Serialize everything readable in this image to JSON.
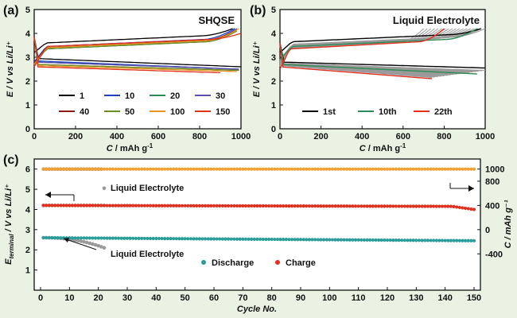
{
  "chart_data": [
    {
      "panel": "(a)",
      "type": "line",
      "title": "SHQSE",
      "xlabel_main": "C",
      "xlabel_unit": " / mAh g",
      "xlabel_sup": "-1",
      "ylabel": "E / V vs Li/Li⁺",
      "xlim": [
        0,
        1000
      ],
      "ylim": [
        0,
        5
      ],
      "xticks": [
        "0",
        "200",
        "400",
        "600",
        "800",
        "1000"
      ],
      "yticks": [
        "0",
        "1",
        "2",
        "3",
        "4",
        "5"
      ],
      "legend": [
        "1",
        "10",
        "20",
        "30",
        "40",
        "50",
        "100",
        "150"
      ],
      "colors": {
        "1": "#000000",
        "10": "#1f3fbf",
        "20": "#2e8b57",
        "30": "#5b4cae",
        "40": "#8b1a1a",
        "50": "#6b8e23",
        "100": "#e8931c",
        "150": "#e0301e"
      },
      "series": [
        {
          "name": "1",
          "charge_capacity": 960,
          "charge_start": 3.2,
          "charge_end": 4.2,
          "plateau": 3.75,
          "discharge_capacity": 1000,
          "discharge_start": 2.95,
          "discharge_end": 2.6
        },
        {
          "name": "10",
          "charge_capacity": 970,
          "charge_start": 2.8,
          "charge_end": 4.2,
          "plateau": 3.6,
          "discharge_capacity": 990,
          "discharge_start": 2.85,
          "discharge_end": 2.5
        },
        {
          "name": "20",
          "charge_capacity": 980,
          "charge_start": 2.7,
          "charge_end": 4.2,
          "plateau": 3.5,
          "discharge_capacity": 990,
          "discharge_start": 2.8,
          "discharge_end": 2.5
        },
        {
          "name": "30",
          "charge_capacity": 980,
          "charge_start": 2.75,
          "charge_end": 4.2,
          "plateau": 3.55,
          "discharge_capacity": 990,
          "discharge_start": 2.8,
          "discharge_end": 2.5
        },
        {
          "name": "40",
          "charge_capacity": 970,
          "charge_start": 2.75,
          "charge_end": 4.1,
          "plateau": 3.55,
          "discharge_capacity": 990,
          "discharge_start": 2.7,
          "discharge_end": 2.45
        },
        {
          "name": "50",
          "charge_capacity": 980,
          "charge_start": 2.7,
          "charge_end": 4.1,
          "plateau": 3.5,
          "discharge_capacity": 990,
          "discharge_start": 2.7,
          "discharge_end": 2.45
        },
        {
          "name": "100",
          "charge_capacity": 990,
          "charge_start": 2.7,
          "charge_end": 4.2,
          "plateau": 3.55,
          "discharge_capacity": 980,
          "discharge_start": 2.65,
          "discharge_end": 2.4
        },
        {
          "name": "150",
          "charge_capacity": 1000,
          "charge_start": 2.6,
          "charge_end": 4.0,
          "plateau": 3.6,
          "discharge_capacity": 900,
          "discharge_start": 2.6,
          "discharge_end": 2.35
        }
      ]
    },
    {
      "panel": "(b)",
      "type": "line",
      "title": "Liquid Electrolyte",
      "xlabel_main": "C",
      "xlabel_unit": " / mAh g",
      "xlabel_sup": "-1",
      "ylabel": "E / V vs Li/Li⁺",
      "xlim": [
        0,
        1000
      ],
      "ylim": [
        0,
        5
      ],
      "xticks": [
        "0",
        "200",
        "400",
        "600",
        "800",
        "1000"
      ],
      "yticks": [
        "0",
        "1",
        "2",
        "3",
        "4",
        "5"
      ],
      "legend": [
        "1st",
        "10th",
        "22th"
      ],
      "colors": {
        "1st": "#000000",
        "10th": "#2e8b57",
        "22th": "#e0301e",
        "other": "#9a9a9a"
      },
      "series": [
        {
          "name": "1st",
          "charge_capacity": 980,
          "charge_start": 3.2,
          "charge_end": 4.2,
          "plateau": 3.8,
          "discharge_capacity": 1000,
          "discharge_start": 2.8,
          "discharge_end": 2.55
        },
        {
          "name": "10th",
          "charge_capacity": 960,
          "charge_start": 2.9,
          "charge_end": 4.2,
          "plateau": 3.6,
          "discharge_capacity": 960,
          "discharge_start": 2.7,
          "discharge_end": 2.3
        },
        {
          "name": "22th",
          "charge_capacity": 800,
          "charge_start": 2.5,
          "charge_end": 4.2,
          "plateau": 3.5,
          "discharge_capacity": 740,
          "discharge_start": 2.6,
          "discharge_end": 2.1
        }
      ],
      "other_cycles_capacity_range": [
        700,
        1000
      ]
    },
    {
      "panel": "(c)",
      "type": "scatter",
      "xlabel": "Cycle No.",
      "ylabel_main": "E",
      "ylabel_sub": "terminal",
      "ylabel_rest": " / V vs Li/Li⁺",
      "ylabel_right": "C / mAh g⁻¹",
      "xlim": [
        0,
        150
      ],
      "ylim_left": [
        0,
        6.5
      ],
      "ylim_right": [
        -400,
        1000
      ],
      "xticks": [
        "0",
        "10",
        "20",
        "30",
        "40",
        "50",
        "60",
        "70",
        "80",
        "90",
        "100",
        "110",
        "120",
        "130",
        "140",
        "150"
      ],
      "yticks_left": [
        "1",
        "2",
        "3",
        "4",
        "5",
        "6"
      ],
      "yticks_right": [
        "-400",
        "0",
        "400",
        "800",
        "1000"
      ],
      "legend": [
        "Discharge",
        "Charge"
      ],
      "colors": {
        "discharge": "#2a9d9b",
        "charge": "#e0301e",
        "capacity": "#f0a030",
        "liquid": "#9a9a9a"
      },
      "annotations": [
        "Liquid Electrolyte",
        "Liquid Electrolyte"
      ],
      "capacity_shqse_mAh_g": 1000,
      "charge_terminal_V": {
        "start": 4.2,
        "end": 4.0
      },
      "discharge_terminal_V": {
        "start": 2.6,
        "mid": 2.5,
        "end": 2.45
      },
      "liquid": {
        "cycles": 22,
        "capacity_V_equiv": 6.0,
        "capacity_last": 5.05,
        "charge_V": 4.2,
        "discharge_V": {
          "start": 2.6,
          "end": 2.1
        }
      }
    }
  ]
}
